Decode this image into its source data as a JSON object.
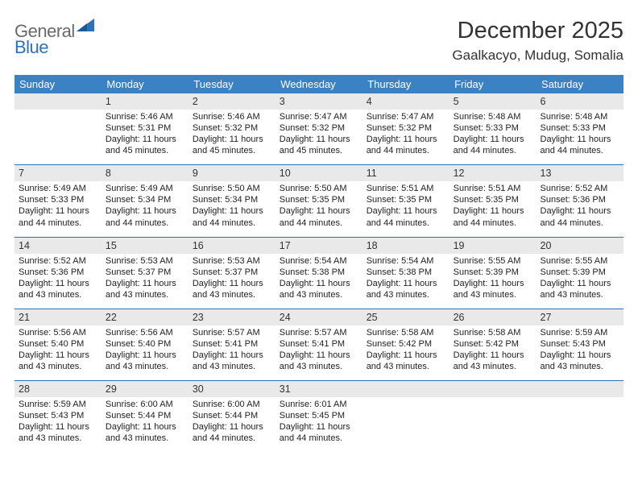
{
  "logo": {
    "word1": "General",
    "word2": "Blue"
  },
  "title": "December 2025",
  "location": "Gaalkacyo, Mudug, Somalia",
  "colors": {
    "header_bg": "#3b82c4",
    "header_text": "#ffffff",
    "week_rule": "#2f71b8",
    "daynum_bg": "#e9e9e9",
    "text": "#333333",
    "logo_gray": "#6a6a6a",
    "logo_blue": "#2f71b8"
  },
  "weekdays": [
    "Sunday",
    "Monday",
    "Tuesday",
    "Wednesday",
    "Thursday",
    "Friday",
    "Saturday"
  ],
  "weeks": [
    {
      "days": [
        null,
        {
          "n": "1",
          "sunrise": "5:46 AM",
          "sunset": "5:31 PM",
          "daylight": "11 hours and 45 minutes."
        },
        {
          "n": "2",
          "sunrise": "5:46 AM",
          "sunset": "5:32 PM",
          "daylight": "11 hours and 45 minutes."
        },
        {
          "n": "3",
          "sunrise": "5:47 AM",
          "sunset": "5:32 PM",
          "daylight": "11 hours and 45 minutes."
        },
        {
          "n": "4",
          "sunrise": "5:47 AM",
          "sunset": "5:32 PM",
          "daylight": "11 hours and 44 minutes."
        },
        {
          "n": "5",
          "sunrise": "5:48 AM",
          "sunset": "5:33 PM",
          "daylight": "11 hours and 44 minutes."
        },
        {
          "n": "6",
          "sunrise": "5:48 AM",
          "sunset": "5:33 PM",
          "daylight": "11 hours and 44 minutes."
        }
      ]
    },
    {
      "days": [
        {
          "n": "7",
          "sunrise": "5:49 AM",
          "sunset": "5:33 PM",
          "daylight": "11 hours and 44 minutes."
        },
        {
          "n": "8",
          "sunrise": "5:49 AM",
          "sunset": "5:34 PM",
          "daylight": "11 hours and 44 minutes."
        },
        {
          "n": "9",
          "sunrise": "5:50 AM",
          "sunset": "5:34 PM",
          "daylight": "11 hours and 44 minutes."
        },
        {
          "n": "10",
          "sunrise": "5:50 AM",
          "sunset": "5:35 PM",
          "daylight": "11 hours and 44 minutes."
        },
        {
          "n": "11",
          "sunrise": "5:51 AM",
          "sunset": "5:35 PM",
          "daylight": "11 hours and 44 minutes."
        },
        {
          "n": "12",
          "sunrise": "5:51 AM",
          "sunset": "5:35 PM",
          "daylight": "11 hours and 44 minutes."
        },
        {
          "n": "13",
          "sunrise": "5:52 AM",
          "sunset": "5:36 PM",
          "daylight": "11 hours and 44 minutes."
        }
      ]
    },
    {
      "days": [
        {
          "n": "14",
          "sunrise": "5:52 AM",
          "sunset": "5:36 PM",
          "daylight": "11 hours and 43 minutes."
        },
        {
          "n": "15",
          "sunrise": "5:53 AM",
          "sunset": "5:37 PM",
          "daylight": "11 hours and 43 minutes."
        },
        {
          "n": "16",
          "sunrise": "5:53 AM",
          "sunset": "5:37 PM",
          "daylight": "11 hours and 43 minutes."
        },
        {
          "n": "17",
          "sunrise": "5:54 AM",
          "sunset": "5:38 PM",
          "daylight": "11 hours and 43 minutes."
        },
        {
          "n": "18",
          "sunrise": "5:54 AM",
          "sunset": "5:38 PM",
          "daylight": "11 hours and 43 minutes."
        },
        {
          "n": "19",
          "sunrise": "5:55 AM",
          "sunset": "5:39 PM",
          "daylight": "11 hours and 43 minutes."
        },
        {
          "n": "20",
          "sunrise": "5:55 AM",
          "sunset": "5:39 PM",
          "daylight": "11 hours and 43 minutes."
        }
      ]
    },
    {
      "days": [
        {
          "n": "21",
          "sunrise": "5:56 AM",
          "sunset": "5:40 PM",
          "daylight": "11 hours and 43 minutes."
        },
        {
          "n": "22",
          "sunrise": "5:56 AM",
          "sunset": "5:40 PM",
          "daylight": "11 hours and 43 minutes."
        },
        {
          "n": "23",
          "sunrise": "5:57 AM",
          "sunset": "5:41 PM",
          "daylight": "11 hours and 43 minutes."
        },
        {
          "n": "24",
          "sunrise": "5:57 AM",
          "sunset": "5:41 PM",
          "daylight": "11 hours and 43 minutes."
        },
        {
          "n": "25",
          "sunrise": "5:58 AM",
          "sunset": "5:42 PM",
          "daylight": "11 hours and 43 minutes."
        },
        {
          "n": "26",
          "sunrise": "5:58 AM",
          "sunset": "5:42 PM",
          "daylight": "11 hours and 43 minutes."
        },
        {
          "n": "27",
          "sunrise": "5:59 AM",
          "sunset": "5:43 PM",
          "daylight": "11 hours and 43 minutes."
        }
      ]
    },
    {
      "days": [
        {
          "n": "28",
          "sunrise": "5:59 AM",
          "sunset": "5:43 PM",
          "daylight": "11 hours and 43 minutes."
        },
        {
          "n": "29",
          "sunrise": "6:00 AM",
          "sunset": "5:44 PM",
          "daylight": "11 hours and 43 minutes."
        },
        {
          "n": "30",
          "sunrise": "6:00 AM",
          "sunset": "5:44 PM",
          "daylight": "11 hours and 44 minutes."
        },
        {
          "n": "31",
          "sunrise": "6:01 AM",
          "sunset": "5:45 PM",
          "daylight": "11 hours and 44 minutes."
        },
        null,
        null,
        null
      ]
    }
  ],
  "labels": {
    "sunrise": "Sunrise: ",
    "sunset": "Sunset: ",
    "daylight": "Daylight: "
  }
}
